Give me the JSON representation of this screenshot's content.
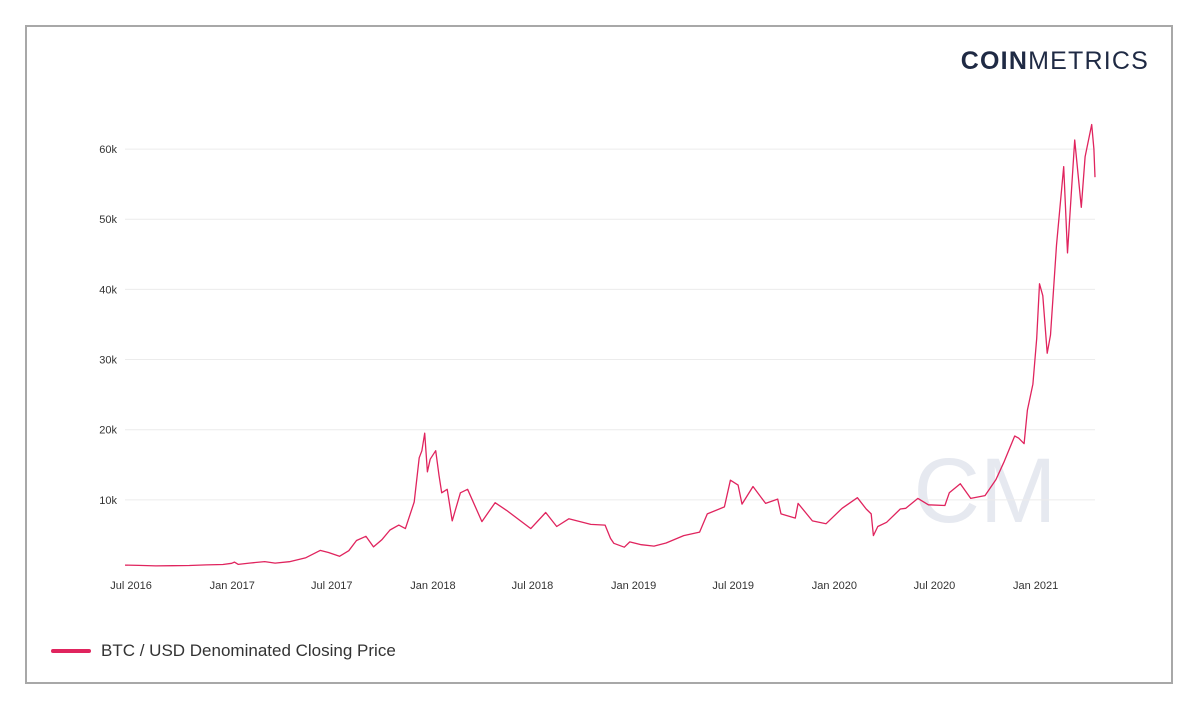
{
  "brand": {
    "logo_strong": "COIN",
    "logo_light": "METRICS",
    "watermark": "CM"
  },
  "colors": {
    "line": "#e0245e",
    "grid": "#ececec",
    "frame": "#a8a8a8",
    "logo": "#1f2a44",
    "watermark": "#e6e9f0"
  },
  "legend": {
    "label": "BTC / USD Denominated Closing Price"
  },
  "chart_data": {
    "type": "line",
    "title": "",
    "xlabel": "",
    "ylabel": "",
    "grid": true,
    "legend_position": "bottom-left",
    "xlim": [
      "2016-06-20",
      "2021-04-19"
    ],
    "ylim": [
      0,
      66000
    ],
    "y_ticks": [
      {
        "value": 10000,
        "label": "10k"
      },
      {
        "value": 20000,
        "label": "20k"
      },
      {
        "value": 30000,
        "label": "30k"
      },
      {
        "value": 40000,
        "label": "40k"
      },
      {
        "value": 50000,
        "label": "50k"
      },
      {
        "value": 60000,
        "label": "60k"
      }
    ],
    "x_ticks": [
      {
        "date": "2016-07-01",
        "label": "Jul 2016"
      },
      {
        "date": "2017-01-01",
        "label": "Jan 2017"
      },
      {
        "date": "2017-07-01",
        "label": "Jul 2017"
      },
      {
        "date": "2018-01-01",
        "label": "Jan 2018"
      },
      {
        "date": "2018-07-01",
        "label": "Jul 2018"
      },
      {
        "date": "2019-01-01",
        "label": "Jan 2019"
      },
      {
        "date": "2019-07-01",
        "label": "Jul 2019"
      },
      {
        "date": "2020-01-01",
        "label": "Jan 2020"
      },
      {
        "date": "2020-07-01",
        "label": "Jul 2020"
      },
      {
        "date": "2021-01-01",
        "label": "Jan 2021"
      }
    ],
    "series": [
      {
        "name": "BTC / USD Denominated Closing Price",
        "points": [
          [
            "2016-06-20",
            700
          ],
          [
            "2016-07-15",
            660
          ],
          [
            "2016-08-15",
            580
          ],
          [
            "2016-09-15",
            610
          ],
          [
            "2016-10-15",
            640
          ],
          [
            "2016-11-15",
            720
          ],
          [
            "2016-12-15",
            780
          ],
          [
            "2016-12-31",
            960
          ],
          [
            "2017-01-05",
            1120
          ],
          [
            "2017-01-12",
            800
          ],
          [
            "2017-02-01",
            980
          ],
          [
            "2017-03-01",
            1200
          ],
          [
            "2017-03-20",
            980
          ],
          [
            "2017-04-15",
            1180
          ],
          [
            "2017-05-15",
            1750
          ],
          [
            "2017-06-10",
            2800
          ],
          [
            "2017-06-25",
            2500
          ],
          [
            "2017-07-15",
            1950
          ],
          [
            "2017-08-01",
            2750
          ],
          [
            "2017-08-15",
            4200
          ],
          [
            "2017-09-01",
            4800
          ],
          [
            "2017-09-15",
            3300
          ],
          [
            "2017-09-30",
            4300
          ],
          [
            "2017-10-15",
            5700
          ],
          [
            "2017-10-31",
            6400
          ],
          [
            "2017-11-12",
            5900
          ],
          [
            "2017-11-28",
            9700
          ],
          [
            "2017-12-07",
            16000
          ],
          [
            "2017-12-12",
            17000
          ],
          [
            "2017-12-17",
            19500
          ],
          [
            "2017-12-22",
            14000
          ],
          [
            "2017-12-27",
            15800
          ],
          [
            "2018-01-06",
            17000
          ],
          [
            "2018-01-12",
            13500
          ],
          [
            "2018-01-17",
            11000
          ],
          [
            "2018-01-27",
            11500
          ],
          [
            "2018-02-05",
            7000
          ],
          [
            "2018-02-20",
            11000
          ],
          [
            "2018-03-05",
            11500
          ],
          [
            "2018-03-31",
            6900
          ],
          [
            "2018-04-24",
            9600
          ],
          [
            "2018-05-15",
            8500
          ],
          [
            "2018-06-28",
            5900
          ],
          [
            "2018-07-25",
            8200
          ],
          [
            "2018-08-14",
            6200
          ],
          [
            "2018-09-05",
            7300
          ],
          [
            "2018-10-15",
            6500
          ],
          [
            "2018-11-10",
            6400
          ],
          [
            "2018-11-20",
            4500
          ],
          [
            "2018-11-26",
            3800
          ],
          [
            "2018-12-15",
            3250
          ],
          [
            "2018-12-25",
            4000
          ],
          [
            "2019-01-15",
            3600
          ],
          [
            "2019-02-07",
            3400
          ],
          [
            "2019-03-01",
            3850
          ],
          [
            "2019-04-02",
            4900
          ],
          [
            "2019-05-01",
            5400
          ],
          [
            "2019-05-15",
            8000
          ],
          [
            "2019-06-15",
            9000
          ],
          [
            "2019-06-26",
            12800
          ],
          [
            "2019-07-10",
            12100
          ],
          [
            "2019-07-17",
            9400
          ],
          [
            "2019-08-06",
            11900
          ],
          [
            "2019-08-29",
            9500
          ],
          [
            "2019-09-20",
            10100
          ],
          [
            "2019-09-26",
            8000
          ],
          [
            "2019-10-22",
            7400
          ],
          [
            "2019-10-27",
            9500
          ],
          [
            "2019-11-22",
            7000
          ],
          [
            "2019-12-17",
            6600
          ],
          [
            "2020-01-15",
            8800
          ],
          [
            "2020-02-12",
            10300
          ],
          [
            "2020-02-28",
            8700
          ],
          [
            "2020-03-08",
            8000
          ],
          [
            "2020-03-12",
            4900
          ],
          [
            "2020-03-20",
            6200
          ],
          [
            "2020-04-05",
            6800
          ],
          [
            "2020-04-30",
            8700
          ],
          [
            "2020-05-10",
            8800
          ],
          [
            "2020-06-01",
            10200
          ],
          [
            "2020-06-20",
            9300
          ],
          [
            "2020-07-20",
            9200
          ],
          [
            "2020-07-28",
            11000
          ],
          [
            "2020-08-17",
            12300
          ],
          [
            "2020-09-05",
            10200
          ],
          [
            "2020-10-01",
            10600
          ],
          [
            "2020-10-21",
            12900
          ],
          [
            "2020-11-05",
            15500
          ],
          [
            "2020-11-24",
            19100
          ],
          [
            "2020-12-01",
            18800
          ],
          [
            "2020-12-11",
            18000
          ],
          [
            "2020-12-17",
            22800
          ],
          [
            "2020-12-27",
            26500
          ],
          [
            "2021-01-03",
            33000
          ],
          [
            "2021-01-08",
            40800
          ],
          [
            "2021-01-14",
            39100
          ],
          [
            "2021-01-22",
            30900
          ],
          [
            "2021-01-28",
            33500
          ],
          [
            "2021-02-08",
            46300
          ],
          [
            "2021-02-21",
            57500
          ],
          [
            "2021-02-28",
            45200
          ],
          [
            "2021-03-13",
            61300
          ],
          [
            "2021-03-25",
            51700
          ],
          [
            "2021-04-01",
            58900
          ],
          [
            "2021-04-13",
            63500
          ],
          [
            "2021-04-17",
            60000
          ],
          [
            "2021-04-19",
            56000
          ]
        ]
      }
    ]
  }
}
